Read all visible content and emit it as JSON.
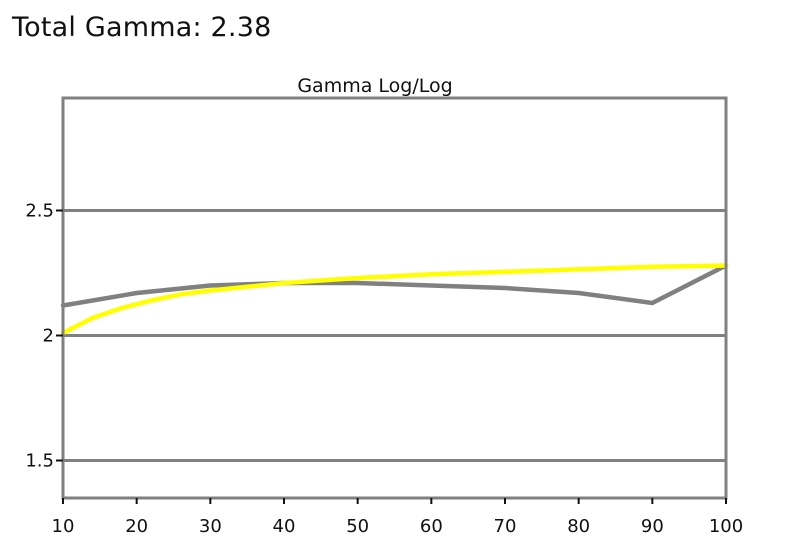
{
  "header": {
    "title": "Total Gamma: 2.38"
  },
  "chart_data": {
    "type": "line",
    "title": "Gamma Log/Log",
    "xlabel": "",
    "ylabel": "",
    "x_ticks": [
      10,
      20,
      30,
      40,
      50,
      60,
      70,
      80,
      90,
      100
    ],
    "y_ticks": [
      1.5,
      2,
      2.5
    ],
    "y_tick_labels": [
      "1.5",
      "2",
      "2.5"
    ],
    "xlim": [
      10,
      100
    ],
    "ylim": [
      1.35,
      2.95
    ],
    "grid": "horizontal",
    "legend": "none",
    "colors": {
      "measured": "#808080",
      "target": "#ffff00",
      "frame": "#808080",
      "grid": "#808080"
    },
    "series": [
      {
        "x": [
          10,
          20,
          30,
          40,
          50,
          60,
          70,
          80,
          90,
          100
        ],
        "values": [
          2.12,
          2.17,
          2.2,
          2.21,
          2.21,
          2.2,
          2.19,
          2.17,
          2.13,
          2.28
        ]
      },
      {
        "x": [
          10,
          14,
          18,
          22,
          26,
          30,
          35,
          40,
          45,
          50,
          60,
          70,
          80,
          90,
          100
        ],
        "values": [
          2.01,
          2.07,
          2.11,
          2.14,
          2.165,
          2.18,
          2.195,
          2.21,
          2.22,
          2.23,
          2.245,
          2.255,
          2.265,
          2.275,
          2.28
        ]
      }
    ]
  }
}
